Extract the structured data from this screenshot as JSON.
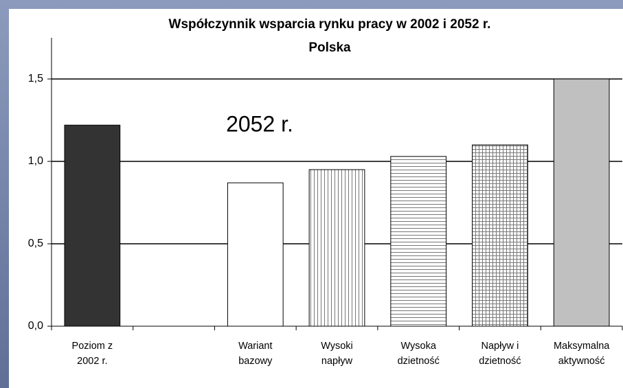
{
  "chart_data": {
    "type": "bar",
    "title": "Współczynnik wsparcia rynku pracy w 2002 i 2052 r.",
    "subtitle": "Polska",
    "annotation": "2052 r.",
    "categories": [
      [
        "Poziom z",
        "2002 r."
      ],
      null,
      [
        "Wariant",
        "bazowy"
      ],
      [
        "Wysoki",
        "napływ"
      ],
      [
        "Wysoka",
        "dzietność"
      ],
      [
        "Napływ i",
        "dzietność"
      ],
      [
        "Maksymalna",
        "aktywność"
      ]
    ],
    "values": [
      1.22,
      null,
      0.87,
      0.95,
      1.03,
      1.1,
      1.5
    ],
    "colors": [
      "#333333",
      null,
      "#ffffff",
      "#ffffff",
      "#ffffff",
      "#ffffff",
      "#c0c0c0"
    ],
    "hatch": [
      null,
      null,
      null,
      "vertical",
      "horizontal",
      "grid",
      null
    ],
    "ylim": [
      0,
      1.75
    ],
    "yticks": [
      {
        "value": 0,
        "label": "0,0"
      },
      {
        "value": 0.5,
        "label": "0,5"
      },
      {
        "value": 1,
        "label": "1,0"
      },
      {
        "value": 1.5,
        "label": "1,5"
      }
    ],
    "grid": true
  }
}
